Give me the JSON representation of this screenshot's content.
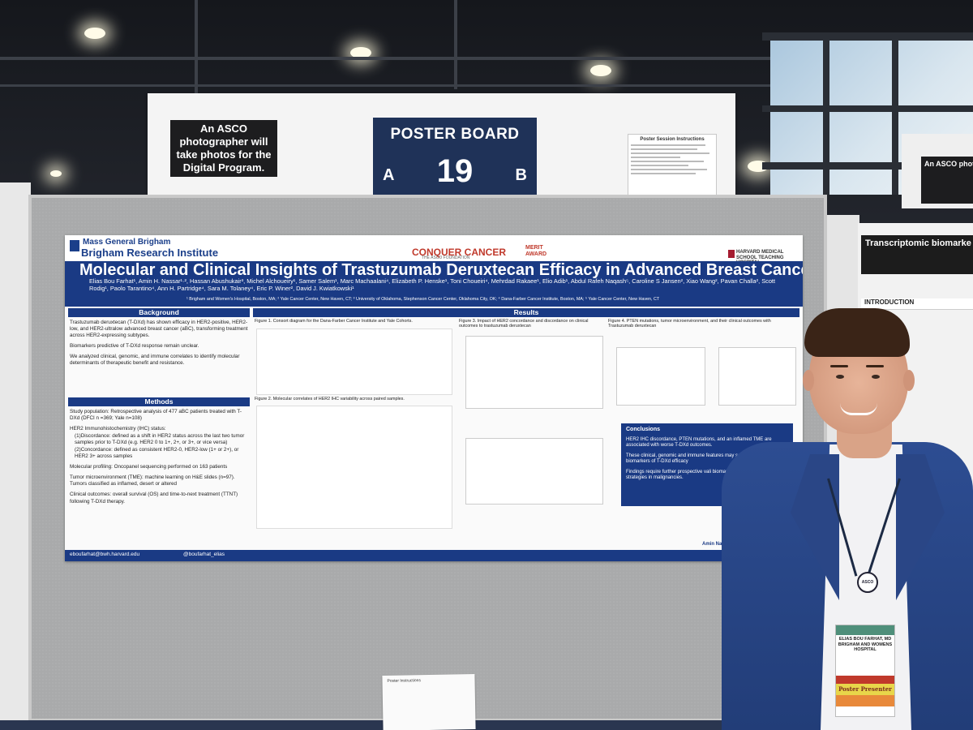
{
  "sign": {
    "asco_note": "An ASCO photographer will take photos for the Digital Program.",
    "board_title": "POSTER BOARD",
    "side_a": "A",
    "board_number": "19",
    "side_b": "B",
    "instructions_title": "Poster Session Instructions"
  },
  "poster": {
    "org_line1": "Mass General Brigham",
    "org_line2": "Brigham Research Institute",
    "sponsor": "CONQUER CANCER",
    "sponsor_sub": "THE ASCO FOUNDATION",
    "award": "MERIT AWARD",
    "school": "HARVARD MEDICAL SCHOOL TEACHING HOSPITAL",
    "title": "Molecular and Clinical Insights of Trastuzumab Deruxtecan Efficacy in Advanced Breast Cancer (aBC)",
    "authors": "Elias Bou Farhat¹, Amin H. Nassar¹·², Hassan Abushukair³, Michel Alchoueiry¹, Samer Salem¹, Marc Machaalani⁴, Elizabeth P. Henske¹, Toni Choueiri⁴, Mehrdad Rakaee¹, Elio Adib¹, Abdul Rafeh Naqash⁵, Caroline S Jansen², Xiao Wang², Pavan Challa², Scott Rodig¹, Paolo Tarantino⁴, Ann H. Partridge⁴, Sara M. Tolaney⁴, Eric P. Winer², David J. Kwiatkowski¹",
    "affiliations": "¹ Brigham and Women's Hospital, Boston, MA; ² Yale Cancer Center, New Haven, CT; ³ University of Oklahoma, Stephenson Cancer Center, Oklahoma City, OK; ⁴ Dana-Farber Cancer Institute, Boston, MA; ⁵ Yale Cancer Center, New Haven, CT",
    "background_head": "Background",
    "background_p1": "Trastuzumab deruxtecan (T-DXd) has shown efficacy in HER2-positive, HER2-low, and HER2-ultralow advanced breast cancer (aBC), transforming treatment across HER2-expressing subtypes.",
    "background_p2": "Biomarkers predictive of T-DXd response remain unclear.",
    "background_p3": "We analyzed clinical, genomic, and immune correlates to identify molecular determinants of therapeutic benefit and resistance.",
    "methods_head": "Methods",
    "methods_p1": "Study population: Retrospective analysis of 477 aBC patients treated with T-DXd (DFCI n =369; Yale n=108)",
    "methods_p2": "HER2 Immunohistochemistry (IHC) status:",
    "methods_p3": "(1)Discordance: defined as a shift in HER2 status across the last two tumor samples prior to T-DXd (e.g. HER2 0 to 1+, 2+, or 3+, or vice versa)",
    "methods_p4": "(2)Concordance: defined as consistent HER2-0, HER2-low (1+ or 2+), or HER2 3+ across samples",
    "methods_p5": "Molecular profiling: Oncopanel sequencing performed on 163 patients",
    "methods_p6": "Tumor microenvironment (TME): machine learning on H&E slides (n=97). Tumors classified as inflamed, desert or altered",
    "methods_p7": "Clinical outcomes: overall survival (OS) and time-to-next treatment (TTNT) following T-DXd therapy.",
    "results_head": "Results",
    "fig1": "Figure 1. Consort diagram for the Dana-Farber Cancer Institute and Yale Cohorts.",
    "fig2": "Figure 2. Molecular correlates of HER2 IHC variability across paired samples.",
    "fig3": "Figure 3. Impact of HER2 concordance and discordance on clinical outcomes to trastuzumab deruxtecan",
    "fig4": "Figure 4. PTEN mutations, tumor microenvironment, and their clinical outcomes with Trastuzumab deruxtecan",
    "conclusions_head": "Conclusions",
    "concl_p1": "HER2 IHC discordance, PTEN mutations, and an inflamed TME are associated with worse T-DXd outcomes.",
    "concl_p2": "These clinical, genomic and immune features may se prognostic biomarkers of T-DXd efficacy",
    "concl_p3": "Findings require further prospective vali biomarker-driven treatment strategies in malignancies.",
    "email": "eboufarhat@bwh.harvard.edu",
    "twitter": "@boufarhat_elias",
    "footer_right": "Amin Nassar@yale.e"
  },
  "right_poster": {
    "title": "Transcriptomic biomarke a comprehensive multi-co",
    "intro": "INTRODUCTION",
    "sign_text": "An ASCO photogr will take pho the Digital P"
  },
  "floor_paper": {
    "title": "Poster Instructions"
  },
  "badge": {
    "name": "ELIAS BOU FARHAT, MD BRIGHAM AND WOMENS HOSPITAL",
    "ribbon": "Poster Presenter"
  },
  "lanyard_clip": "ASCO"
}
